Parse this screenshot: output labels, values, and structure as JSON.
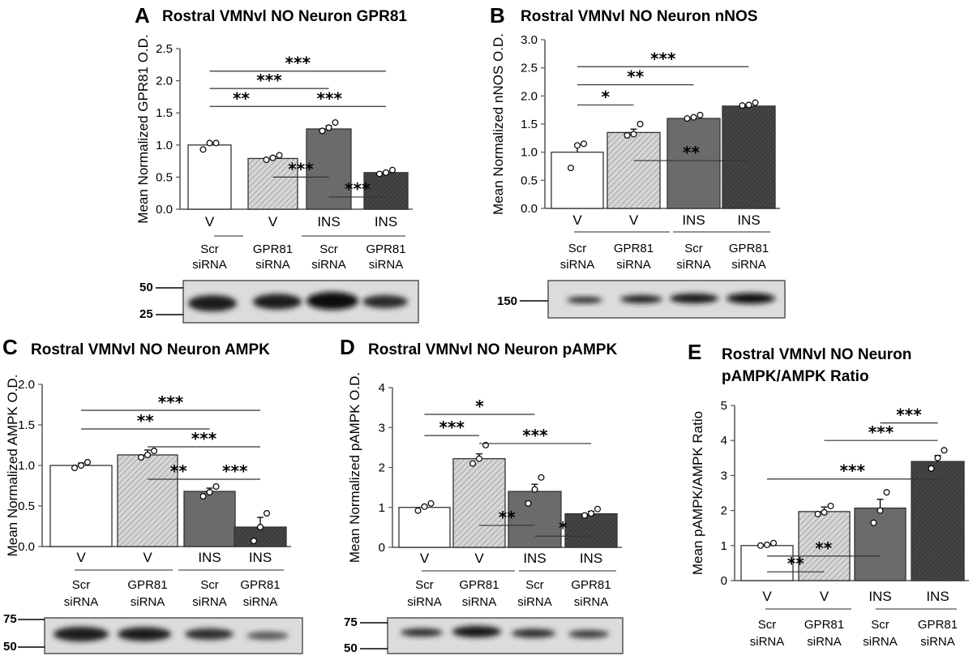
{
  "colors": {
    "scr_v": "#ffffff",
    "gpr_v": "#d6d6d6",
    "scr_ins": "#6b6b6b",
    "gpr_ins": "#404040"
  },
  "chart_data": [
    {
      "type": "bar",
      "panel": "A",
      "title": "Rostral VMNvl NO Neuron GPR81",
      "ylabel": "Mean Normalized GPR81 O.D.",
      "ylim": [
        0,
        2.5
      ],
      "yticks": [
        "0.0",
        "0.5",
        "1.0",
        "1.5",
        "2.0",
        "2.5"
      ],
      "categories": [
        "V",
        "V",
        "INS",
        "INS"
      ],
      "groups": [
        "Scr siRNA",
        "GPR81 siRNA",
        "Scr siRNA",
        "GPR81 siRNA"
      ],
      "values": [
        1.0,
        0.79,
        1.25,
        0.57
      ],
      "errors": [
        0.0,
        0.03,
        0.05,
        0.02
      ],
      "points": [
        [
          0.93,
          1.03,
          1.03
        ],
        [
          0.77,
          0.8,
          0.84
        ],
        [
          1.22,
          1.27,
          1.35
        ],
        [
          0.55,
          0.57,
          0.61
        ]
      ],
      "significance": [
        {
          "from": 0,
          "to": 3,
          "y": 2.15,
          "label": "***"
        },
        {
          "from": 0,
          "to": 2,
          "y": 1.88,
          "label": "***"
        },
        {
          "from": 0,
          "to": 1,
          "y": 1.6,
          "label": "**"
        },
        {
          "from": 1,
          "to": 3,
          "y": 1.6,
          "label": "***"
        },
        {
          "from": 1,
          "to": 2,
          "y": 0.5,
          "label": "***"
        },
        {
          "from": 2,
          "to": 3,
          "y": 0.19,
          "label": "***"
        }
      ],
      "blot_markers": [
        "50",
        "25"
      ]
    },
    {
      "type": "bar",
      "panel": "B",
      "title": "Rostral VMNvl NO Neuron nNOS",
      "ylabel": "Mean Normalized nNOS O.D.",
      "ylim": [
        0,
        3.0
      ],
      "yticks": [
        "0.0",
        "0.5",
        "1.0",
        "1.5",
        "2.0",
        "2.5",
        "3.0"
      ],
      "categories": [
        "V",
        "V",
        "INS",
        "INS"
      ],
      "groups": [
        "Scr siRNA",
        "GPR81 siRNA",
        "Scr siRNA",
        "GPR81 siRNA"
      ],
      "values": [
        1.0,
        1.35,
        1.6,
        1.82
      ],
      "errors": [
        0.13,
        0.06,
        0.03,
        0.02
      ],
      "points": [
        [
          0.72,
          1.12,
          1.15
        ],
        [
          1.3,
          1.32,
          1.5
        ],
        [
          1.6,
          1.62,
          1.66
        ],
        [
          1.83,
          1.84,
          1.88
        ]
      ],
      "significance": [
        {
          "from": 0,
          "to": 3,
          "y": 2.52,
          "label": "***"
        },
        {
          "from": 0,
          "to": 2,
          "y": 2.2,
          "label": "**"
        },
        {
          "from": 0,
          "to": 1,
          "y": 1.84,
          "label": "*"
        },
        {
          "from": 1,
          "to": 3,
          "y": 0.85,
          "label": "**"
        }
      ],
      "blot_markers": [
        "150"
      ]
    },
    {
      "type": "bar",
      "panel": "C",
      "title": "Rostral VMNvl NO Neuron AMPK",
      "ylabel": "Mean Normalized AMPK O.D.",
      "ylim": [
        0,
        2.0
      ],
      "yticks": [
        "0.0",
        "0.5",
        "1.0",
        "1.5",
        "2.0"
      ],
      "categories": [
        "V",
        "V",
        "INS",
        "INS"
      ],
      "groups": [
        "Scr siRNA",
        "GPR81 siRNA",
        "Scr siRNA",
        "GPR81 siRNA"
      ],
      "values": [
        1.0,
        1.13,
        0.68,
        0.24
      ],
      "errors": [
        0.03,
        0.06,
        0.04,
        0.12
      ],
      "points": [
        [
          0.97,
          1.0,
          1.04
        ],
        [
          1.1,
          1.13,
          1.18
        ],
        [
          0.62,
          0.67,
          0.74
        ],
        [
          0.07,
          0.24,
          0.41
        ]
      ],
      "significance": [
        {
          "from": 0,
          "to": 3,
          "y": 1.68,
          "label": "***"
        },
        {
          "from": 0,
          "to": 2,
          "y": 1.45,
          "label": "**"
        },
        {
          "from": 1,
          "to": 3,
          "y": 1.23,
          "label": "***"
        },
        {
          "from": 1,
          "to": 2,
          "y": 0.83,
          "label": "**"
        },
        {
          "from": 2,
          "to": 3,
          "y": 0.83,
          "label": "***"
        }
      ],
      "blot_markers": [
        "75",
        "50"
      ]
    },
    {
      "type": "bar",
      "panel": "D",
      "title": "Rostral VMNvl NO Neuron pAMPK",
      "ylabel": "Mean Normalized pAMPK O.D.",
      "ylim": [
        0,
        4
      ],
      "yticks": [
        "0",
        "1",
        "2",
        "3",
        "4"
      ],
      "categories": [
        "V",
        "V",
        "INS",
        "INS"
      ],
      "groups": [
        "Scr siRNA",
        "GPR81 siRNA",
        "Scr siRNA",
        "GPR81 siRNA"
      ],
      "values": [
        1.0,
        2.22,
        1.4,
        0.84
      ],
      "errors": [
        0.05,
        0.12,
        0.18,
        0.06
      ],
      "points": [
        [
          0.92,
          1.02,
          1.1
        ],
        [
          2.1,
          2.22,
          2.56
        ],
        [
          1.1,
          1.45,
          1.75
        ],
        [
          0.8,
          0.85,
          0.96
        ]
      ],
      "significance": [
        {
          "from": 0,
          "to": 2,
          "y": 3.33,
          "label": "*"
        },
        {
          "from": 0,
          "to": 1,
          "y": 2.8,
          "label": "***"
        },
        {
          "from": 1,
          "to": 3,
          "y": 2.6,
          "label": "***"
        },
        {
          "from": 1,
          "to": 2,
          "y": 0.55,
          "label": "**"
        },
        {
          "from": 2,
          "to": 3,
          "y": 0.28,
          "label": "*"
        }
      ],
      "blot_markers": [
        "75",
        "50"
      ]
    },
    {
      "type": "bar",
      "panel": "E",
      "title": "Rostral VMNvl NO Neuron",
      "subtitle": "pAMPK/AMPK Ratio",
      "ylabel": "Mean pAMPK/AMPK Ratio",
      "ylim": [
        0,
        5
      ],
      "yticks": [
        "0",
        "1",
        "2",
        "3",
        "4",
        "5"
      ],
      "categories": [
        "V",
        "V",
        "INS",
        "INS"
      ],
      "groups": [
        "Scr siRNA",
        "GPR81 siRNA",
        "Scr siRNA",
        "GPR81 siRNA"
      ],
      "values": [
        1.0,
        1.97,
        2.07,
        3.4
      ],
      "errors": [
        0.03,
        0.13,
        0.25,
        0.17
      ],
      "points": [
        [
          1.0,
          1.02,
          1.07
        ],
        [
          1.9,
          1.95,
          2.13
        ],
        [
          1.65,
          2.0,
          2.52
        ],
        [
          3.2,
          3.5,
          3.72
        ]
      ],
      "significance": [
        {
          "from": 2,
          "to": 3,
          "y": 4.5,
          "label": "***"
        },
        {
          "from": 1,
          "to": 3,
          "y": 4.0,
          "label": "***"
        },
        {
          "from": 0,
          "to": 3,
          "y": 2.9,
          "label": "***"
        },
        {
          "from": 0,
          "to": 2,
          "y": 0.7,
          "label": "**"
        },
        {
          "from": 0,
          "to": 1,
          "y": 0.25,
          "label": "**"
        }
      ]
    }
  ]
}
